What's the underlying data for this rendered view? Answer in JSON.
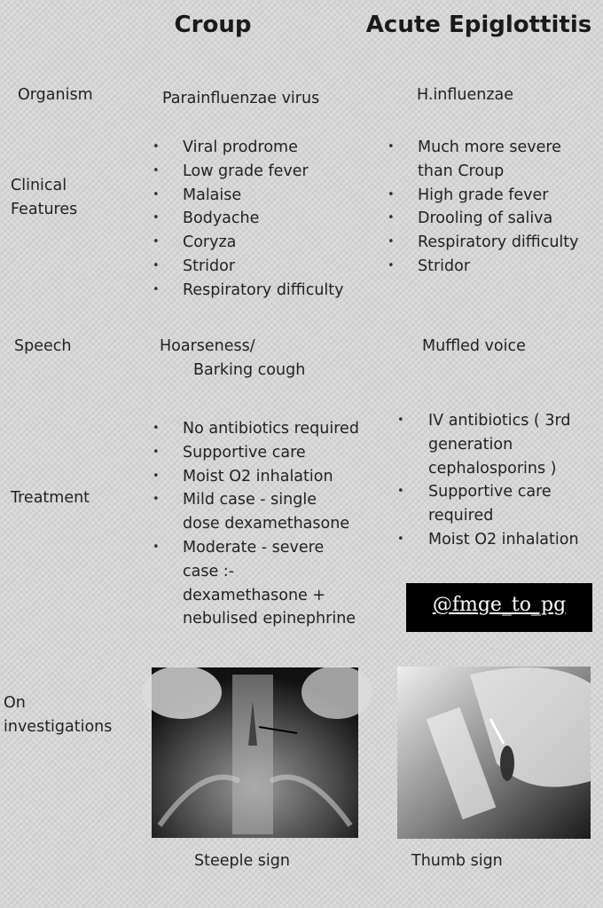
{
  "header": {
    "croup": "Croup",
    "epiglottitis": "Acute Epiglottitis"
  },
  "rows": [
    {
      "label": [
        "Organism"
      ],
      "croup": "Parainfluenzae virus",
      "epiglottitis": "H.influenzae"
    },
    {
      "label": [
        "Clinical",
        "Features"
      ],
      "croup": [
        [
          "Viral prodrome"
        ],
        [
          "Low grade fever"
        ],
        [
          "Malaise"
        ],
        [
          "Bodyache"
        ],
        [
          "Coryza"
        ],
        [
          "Stridor"
        ],
        [
          "Respiratory difficulty"
        ]
      ],
      "epiglottitis": [
        [
          "Much more severe",
          "than Croup"
        ],
        [
          "High grade fever"
        ],
        [
          "Drooling of saliva"
        ],
        [
          "Respiratory difficulty"
        ],
        [
          "Stridor"
        ]
      ]
    },
    {
      "label": [
        "Speech"
      ],
      "croup": [
        "Hoarseness/",
        "Barking cough"
      ],
      "epiglottitis": "Muffled voice"
    },
    {
      "label": [
        "Treatment"
      ],
      "croup": [
        [
          "No antibiotics required"
        ],
        [
          "Supportive care"
        ],
        [
          "Moist O2 inhalation"
        ],
        [
          "Mild case - single",
          "dose dexamethasone"
        ],
        [
          "Moderate - severe",
          "case :-",
          "dexamethasone +",
          "nebulised epinephrine"
        ]
      ],
      "epiglottitis": [
        [
          "IV antibiotics ( 3rd",
          "generation",
          "cephalosporins )"
        ],
        [
          "Supportive care",
          "required"
        ],
        [
          "Moist O2 inhalation"
        ]
      ]
    },
    {
      "label": [
        "On",
        "investigations"
      ],
      "croup": "Steeple sign",
      "epiglottitis": "Thumb sign"
    }
  ],
  "watermark": "@fmge_to_pg"
}
